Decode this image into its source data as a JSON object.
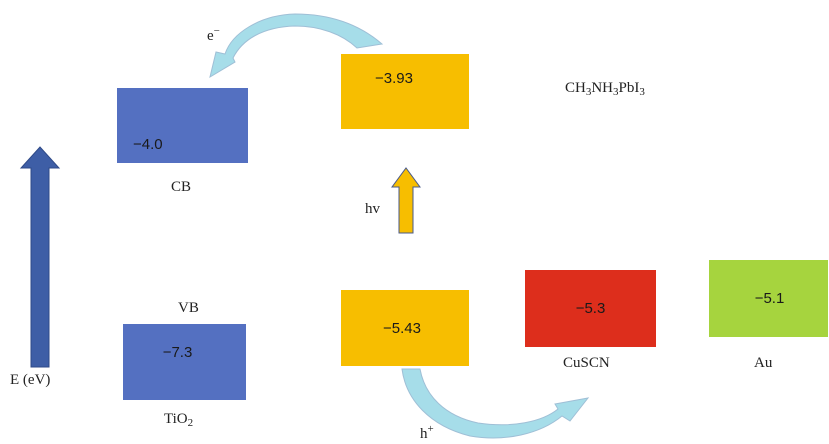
{
  "colors": {
    "tio2": "#5470c1",
    "perovskite": "#f7be00",
    "cuscn": "#dd2e1c",
    "au": "#a6d43e",
    "energy_arrow": "#3e5ea6",
    "hv_arrow": "#f7be00",
    "transfer_arrow": "#a6dde9"
  },
  "labels": {
    "cb": "CB",
    "vb": "VB",
    "tio2_main": "TiO",
    "tio2_sub": "2",
    "hv": "hv",
    "energy_axis": "E (eV)",
    "electron_main": "e",
    "electron_sup": "−",
    "hole_main": "h",
    "hole_sup": "+",
    "perovskite_formula": {
      "p1": "CH",
      "s1": "3",
      "p2": "NH",
      "s2": "3",
      "p3": "PbI",
      "s3": "3"
    },
    "cuscn": "CuSCN",
    "au": "Au"
  },
  "levels": {
    "tio2_cb": "−4.0",
    "tio2_vb": "−7.3",
    "perovskite_cb": "−3.93",
    "perovskite_vb": "−5.43",
    "cuscn": "−5.3",
    "au": "−5.1"
  }
}
